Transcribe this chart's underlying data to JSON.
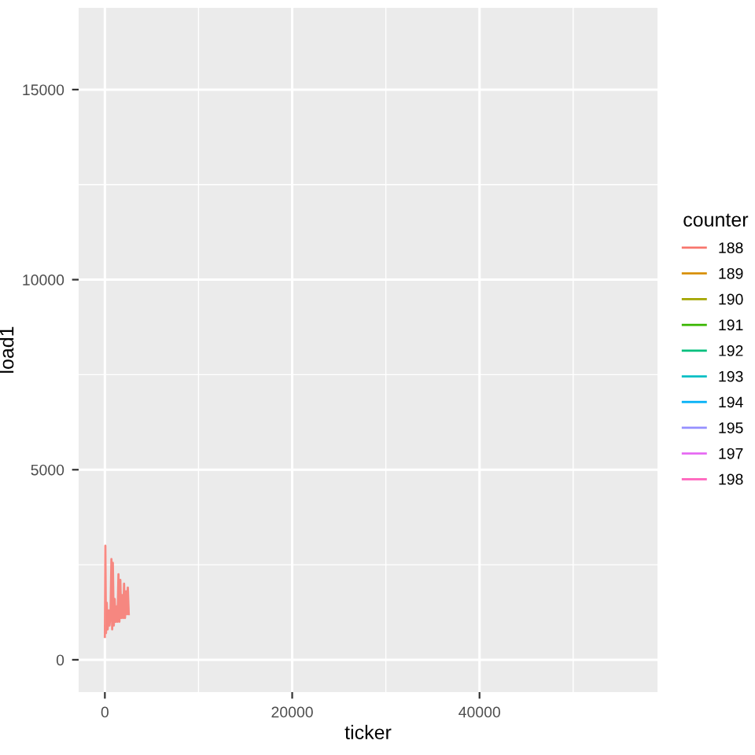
{
  "chart_data": {
    "type": "line",
    "xlabel": "ticker",
    "ylabel": "load1",
    "legend_title": "counter",
    "legend": "right",
    "grid": true,
    "xlim": [
      -2800,
      59000
    ],
    "xticks": [
      0,
      20000,
      40000
    ],
    "ylim": [
      -850,
      17150
    ],
    "yticks": [
      0,
      5000,
      10000,
      15000
    ],
    "series": [
      {
        "name": "188",
        "color": "#f8766d",
        "x": [
          0,
          50,
          120,
          200,
          300,
          400,
          500,
          600,
          700,
          780,
          850,
          950,
          1050,
          1150,
          1250,
          1350,
          1450,
          1550,
          1650,
          1750,
          1850,
          1950,
          2050,
          2150,
          2250,
          2350,
          2450,
          2550
        ],
        "values": [
          600,
          3000,
          700,
          1500,
          800,
          1300,
          900,
          1200,
          2650,
          800,
          2550,
          900,
          1600,
          1000,
          1400,
          1000,
          2250,
          1000,
          2100,
          1100,
          1700,
          1100,
          2000,
          1100,
          1800,
          1200,
          1900,
          1200
        ]
      },
      {
        "name": "189",
        "color": "#d89000"
      },
      {
        "name": "190",
        "color": "#a3a500"
      },
      {
        "name": "191",
        "color": "#39b600"
      },
      {
        "name": "192",
        "color": "#00bf7d"
      },
      {
        "name": "193",
        "color": "#00bfc4"
      },
      {
        "name": "194",
        "color": "#00b0f6"
      },
      {
        "name": "195",
        "color": "#9590ff"
      },
      {
        "name": "197",
        "color": "#e76bf3"
      },
      {
        "name": "198",
        "color": "#ff62bc"
      }
    ]
  }
}
